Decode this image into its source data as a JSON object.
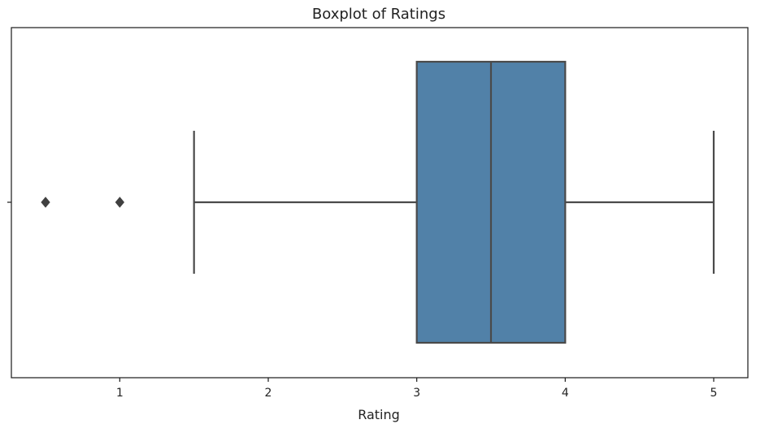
{
  "chart_data": {
    "type": "boxplot",
    "title": "Boxplot of Ratings",
    "xlabel": "Rating",
    "ylabel": "",
    "orientation": "horizontal",
    "xlim": [
      0.27,
      5.23
    ],
    "x_ticks": [
      1,
      2,
      3,
      4,
      5
    ],
    "x_tick_labels": [
      "1",
      "2",
      "3",
      "4",
      "5"
    ],
    "grid": false,
    "box": {
      "whisker_low": 1.5,
      "q1": 3.0,
      "median": 3.5,
      "q3": 4.0,
      "whisker_high": 5.0,
      "outliers": [
        0.5,
        1.0
      ]
    },
    "colors": {
      "box_fill": "#5181a8",
      "line": "#4a4a4a",
      "outlier": "#404040",
      "frame": "#222222"
    }
  }
}
